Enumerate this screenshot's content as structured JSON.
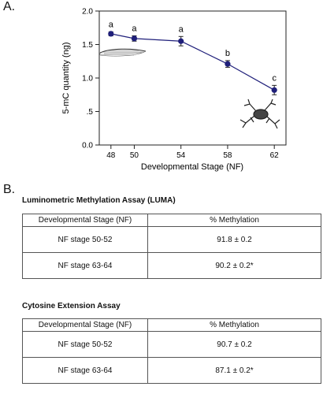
{
  "panel_a_label": "A.",
  "panel_b_label": "B.",
  "chart_data": {
    "type": "line",
    "xlabel": "Developmental Stage (NF)",
    "ylabel": "5-mC quantity (ng)",
    "x": [
      48,
      50,
      54,
      58,
      62
    ],
    "xticks": [
      "48",
      "50",
      "54",
      "58",
      "62"
    ],
    "ylim": [
      0,
      2.0
    ],
    "yticks": [
      "0.0",
      ".5",
      "1.0",
      "1.5",
      "2.0"
    ],
    "series": [
      {
        "values": [
          1.66,
          1.59,
          1.55,
          1.21,
          0.82
        ],
        "errors": [
          0.03,
          0.04,
          0.07,
          0.05,
          0.07
        ],
        "color": "#1f1f7a"
      }
    ],
    "annotations": [
      "a",
      "a",
      "a",
      "b",
      "c"
    ],
    "grid": false,
    "legend": "none"
  },
  "tables": [
    {
      "title": "Luminometric Methylation Assay (LUMA)",
      "headers": [
        "Developmental Stage (NF)",
        "% Methylation"
      ],
      "rows": [
        [
          "NF stage 50-52",
          "91.8 ± 0.2"
        ],
        [
          "NF stage 63-64",
          "90.2 ± 0.2*"
        ]
      ]
    },
    {
      "title": "Cytosine Extension Assay",
      "headers": [
        "Developmental Stage (NF)",
        "% Methylation"
      ],
      "rows": [
        [
          "NF stage 50-52",
          "90.7 ± 0.2"
        ],
        [
          "NF stage 63-64",
          "87.1 ± 0.2*"
        ]
      ]
    }
  ]
}
